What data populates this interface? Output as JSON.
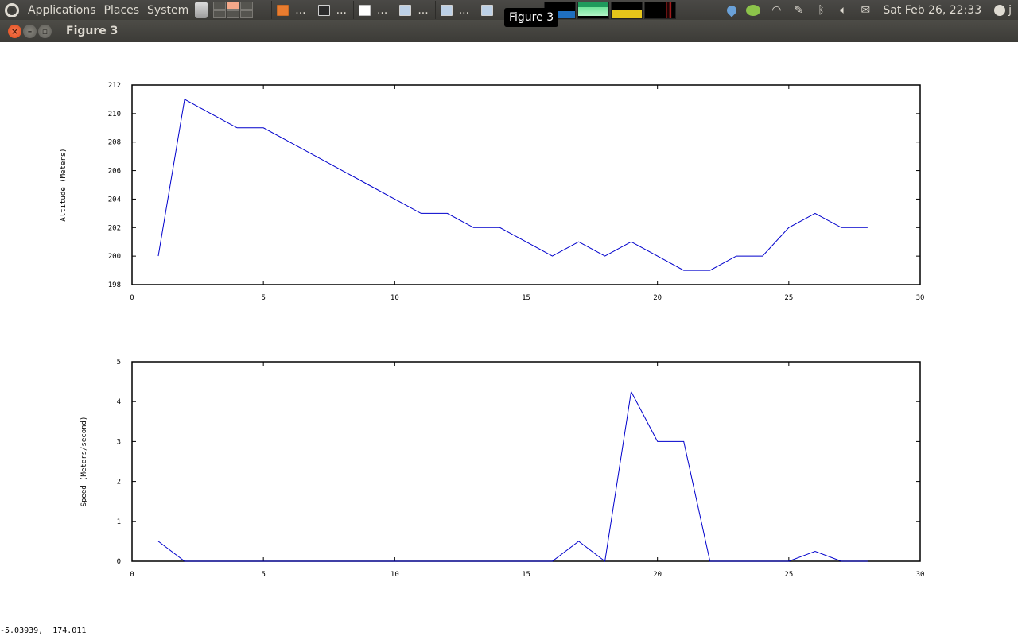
{
  "panel": {
    "menus": [
      "Applications",
      "Places",
      "System"
    ],
    "tasks": [
      {
        "icon": "folder-icon",
        "label": "..."
      },
      {
        "icon": "terminal-icon",
        "label": "..."
      },
      {
        "icon": "text-editor-icon",
        "label": "..."
      },
      {
        "icon": "window-icon",
        "label": "..."
      },
      {
        "icon": "window-icon",
        "label": "..."
      },
      {
        "icon": "window-icon",
        "label": ""
      }
    ],
    "tray_icons": [
      "dropbox-icon",
      "chat-icon",
      "wifi-icon",
      "notes-icon",
      "bluetooth-icon",
      "volume-icon",
      "mail-icon"
    ],
    "clock": "Sat Feb 26, 22:33",
    "user": "j"
  },
  "tooltip": "Figure 3",
  "window": {
    "title": "Figure 3"
  },
  "coord_readout": "-5.03939,  174.011",
  "colors": {
    "line": "#0000cc",
    "panel": "#3c3b37"
  },
  "chart_data": [
    {
      "type": "line",
      "title": "",
      "xlabel": "",
      "ylabel": "Altitude (Meters)",
      "xlim": [
        0,
        30
      ],
      "ylim": [
        198,
        212
      ],
      "xticks": [
        0,
        5,
        10,
        15,
        20,
        25,
        30
      ],
      "yticks": [
        198,
        200,
        202,
        204,
        206,
        208,
        210,
        212
      ],
      "grid": false,
      "x": [
        1,
        2,
        3,
        4,
        5,
        6,
        7,
        8,
        9,
        10,
        11,
        12,
        13,
        14,
        15,
        16,
        17,
        18,
        19,
        20,
        21,
        22,
        23,
        24,
        25,
        26,
        27,
        28
      ],
      "y": [
        200,
        211,
        210,
        209,
        209,
        208,
        207,
        206,
        205,
        204,
        203,
        203,
        202,
        202,
        201,
        200,
        201,
        200,
        201,
        200,
        199,
        199,
        200,
        200,
        202,
        203,
        202,
        202
      ]
    },
    {
      "type": "line",
      "title": "",
      "xlabel": "",
      "ylabel": "Speed (Meters/second)",
      "xlim": [
        0,
        30
      ],
      "ylim": [
        0,
        5
      ],
      "xticks": [
        0,
        5,
        10,
        15,
        20,
        25,
        30
      ],
      "yticks": [
        0,
        1,
        2,
        3,
        4,
        5
      ],
      "grid": false,
      "x": [
        1,
        2,
        3,
        4,
        5,
        6,
        7,
        8,
        9,
        10,
        11,
        12,
        13,
        14,
        15,
        16,
        17,
        18,
        19,
        20,
        21,
        22,
        23,
        24,
        25,
        26,
        27,
        28
      ],
      "y": [
        0.5,
        0,
        0,
        0,
        0,
        0,
        0,
        0,
        0,
        0,
        0,
        0,
        0,
        0,
        0,
        0,
        0.5,
        0,
        4.25,
        3,
        3,
        0,
        0,
        0,
        0,
        0.25,
        0,
        0
      ]
    }
  ]
}
